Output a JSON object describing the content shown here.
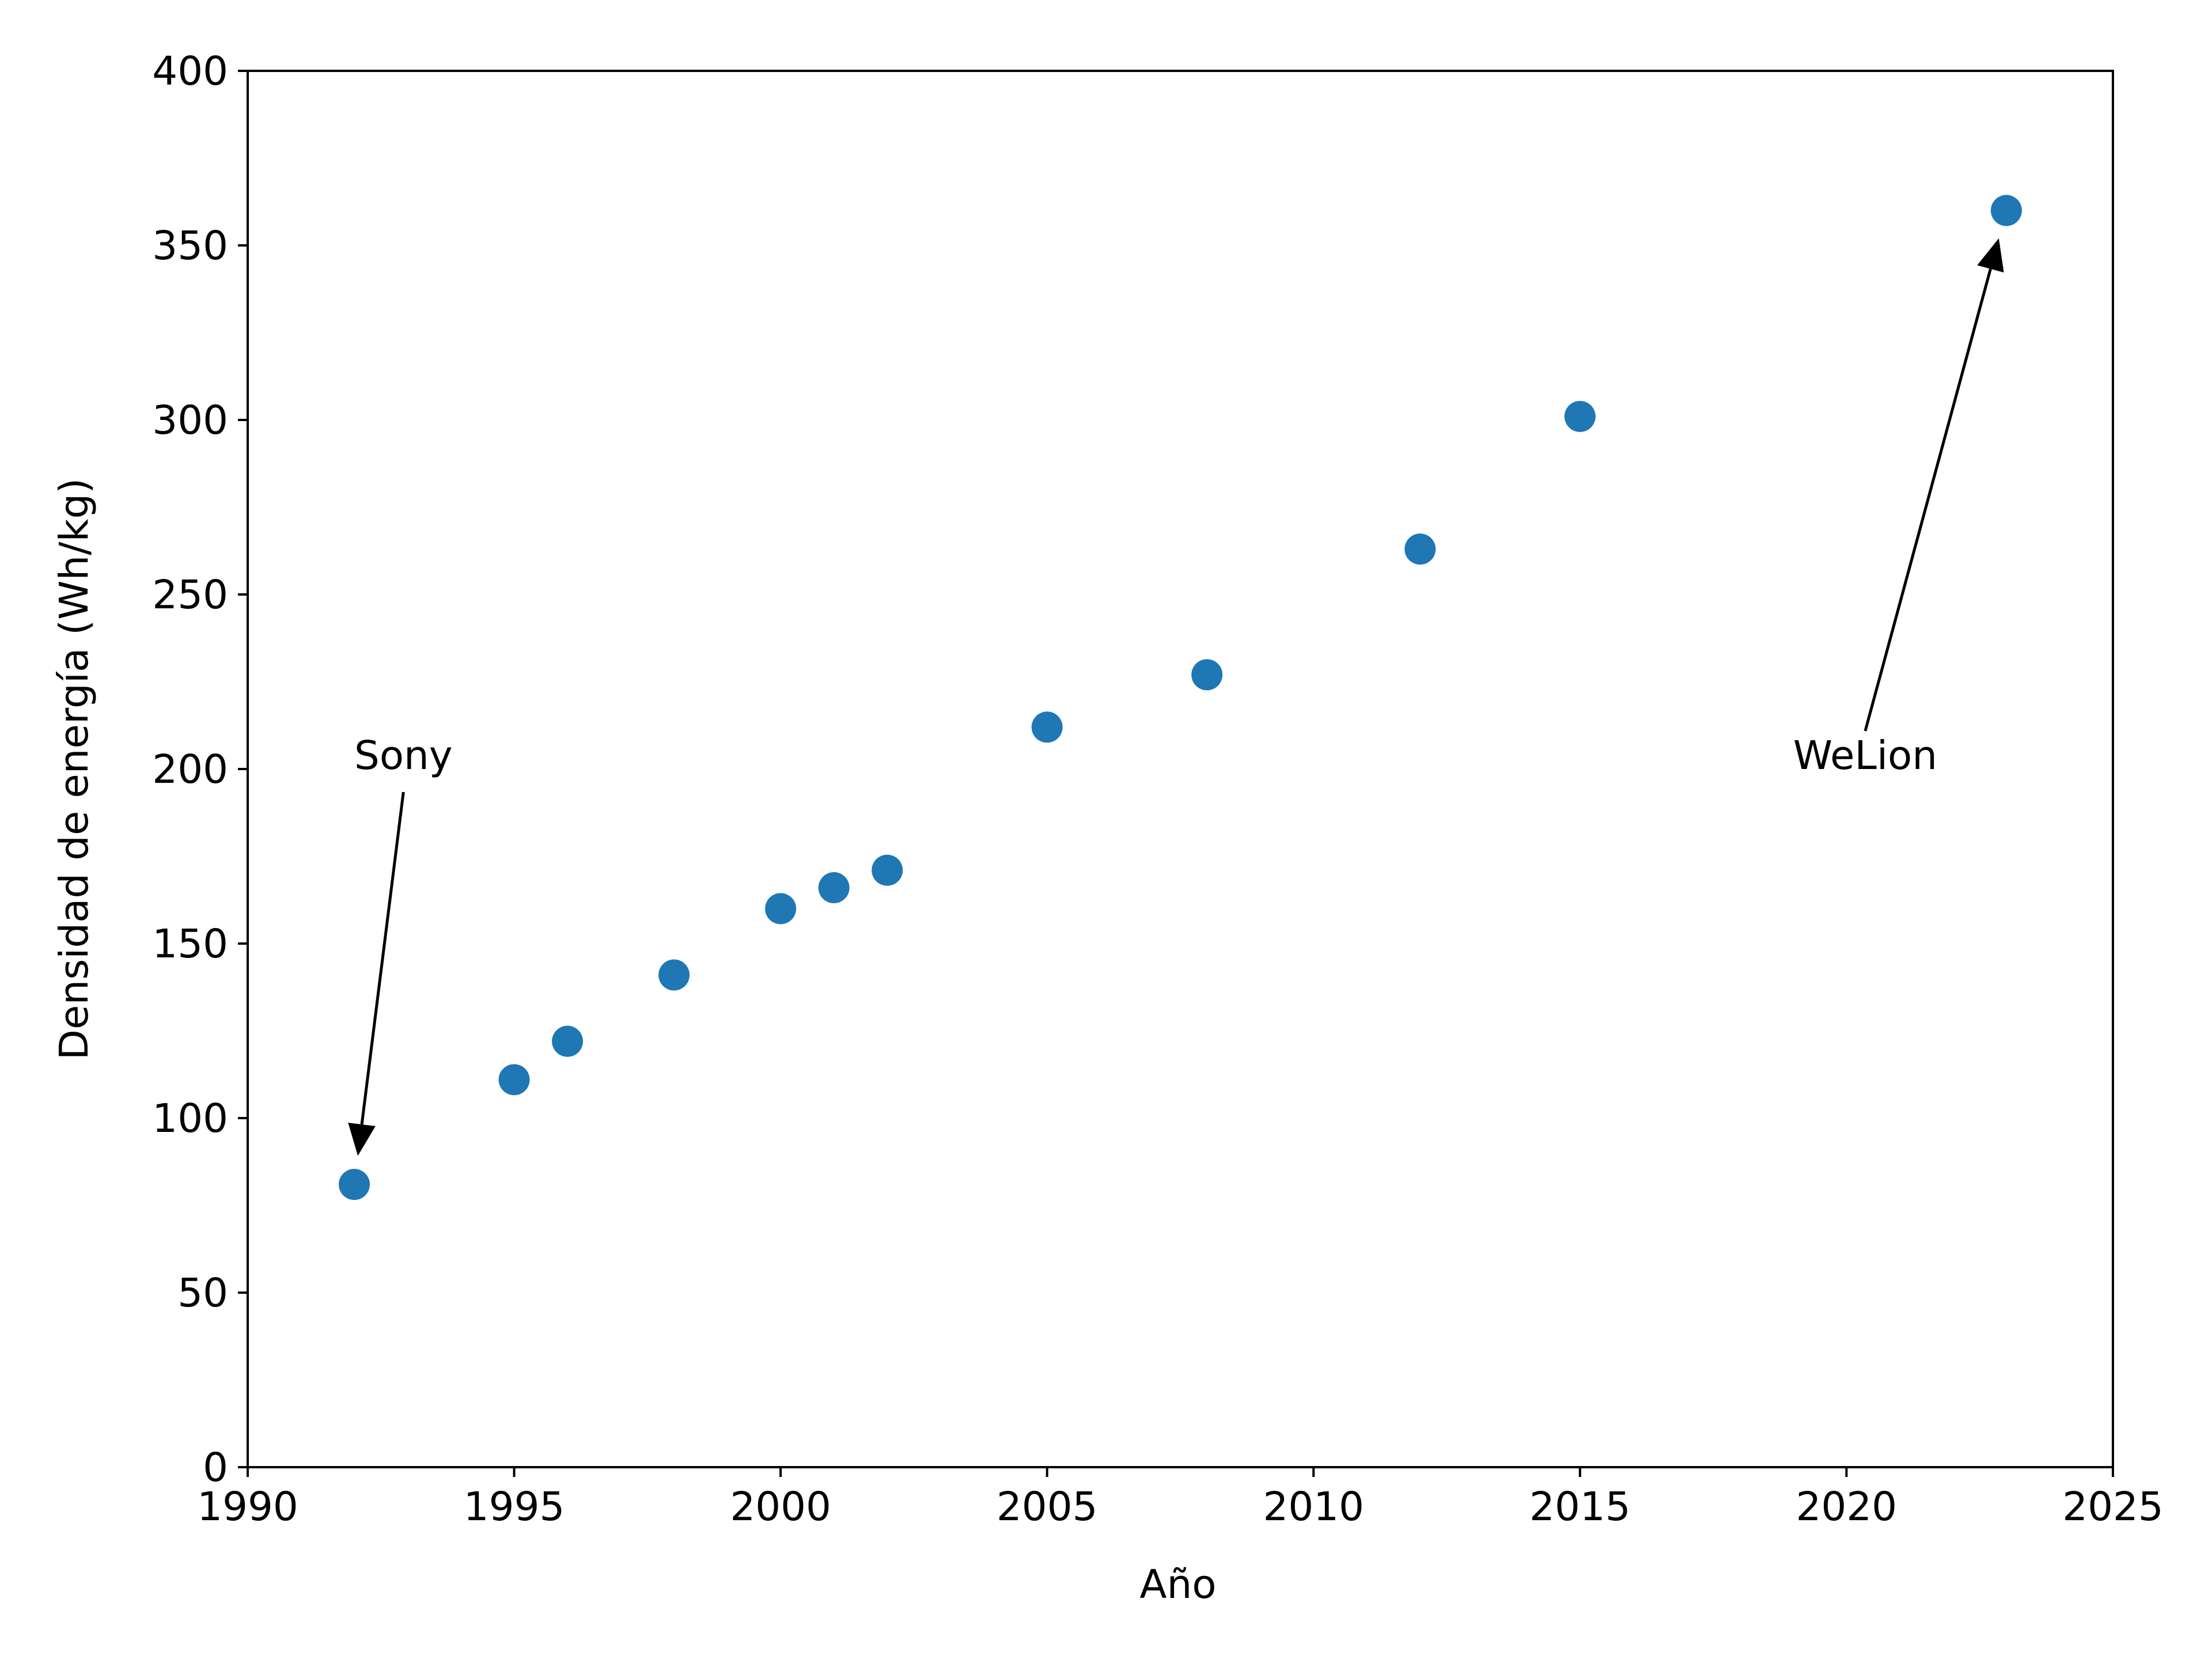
{
  "chart_data": {
    "type": "scatter",
    "title": "",
    "xlabel": "Año",
    "ylabel": "Densidad de energía (Wh/kg)",
    "xlim": [
      1990,
      2025
    ],
    "ylim": [
      0,
      400
    ],
    "xticks": [
      1990,
      1995,
      2000,
      2005,
      2010,
      2015,
      2020,
      2025
    ],
    "yticks": [
      0,
      50,
      100,
      150,
      200,
      250,
      300,
      350,
      400
    ],
    "grid": false,
    "legend": "none",
    "marker_color": "#1f77b4",
    "series": [
      {
        "x": [
          1992,
          1995,
          1996,
          1998,
          2000,
          2001,
          2002,
          2005,
          2008,
          2012,
          2015,
          2023
        ],
        "y": [
          81,
          111,
          122,
          141,
          160,
          166,
          171,
          212,
          227,
          263,
          301,
          360
        ]
      }
    ],
    "annotations": [
      {
        "text": "Sony",
        "point": [
          1992,
          81
        ],
        "text_position": [
          1992,
          200
        ]
      },
      {
        "text": "WeLion",
        "point": [
          2023,
          360
        ],
        "text_position": [
          2019,
          200
        ]
      }
    ]
  }
}
